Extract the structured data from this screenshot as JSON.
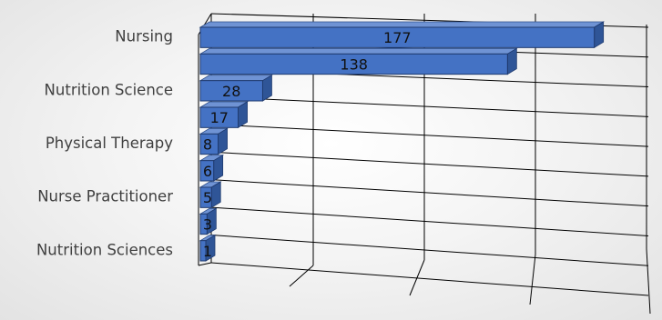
{
  "chart_data": {
    "type": "bar",
    "orientation": "horizontal",
    "style": "3d",
    "categories": [
      "Nursing",
      "",
      "Nutrition Science",
      "",
      "Physical Therapy",
      "",
      "Nurse Practitioner",
      "",
      "Nutrition Sciences"
    ],
    "values": [
      177,
      138,
      28,
      17,
      8,
      6,
      5,
      3,
      1
    ],
    "xlim": [
      0,
      180
    ],
    "grid": true,
    "legend": "none",
    "title": "",
    "xlabel": "",
    "ylabel": "",
    "colors": {
      "bar_front": "#4472C4",
      "bar_top": "#6f93d4",
      "bar_side": "#2f5597",
      "grid": "#000000",
      "label_text": "#404040"
    }
  }
}
